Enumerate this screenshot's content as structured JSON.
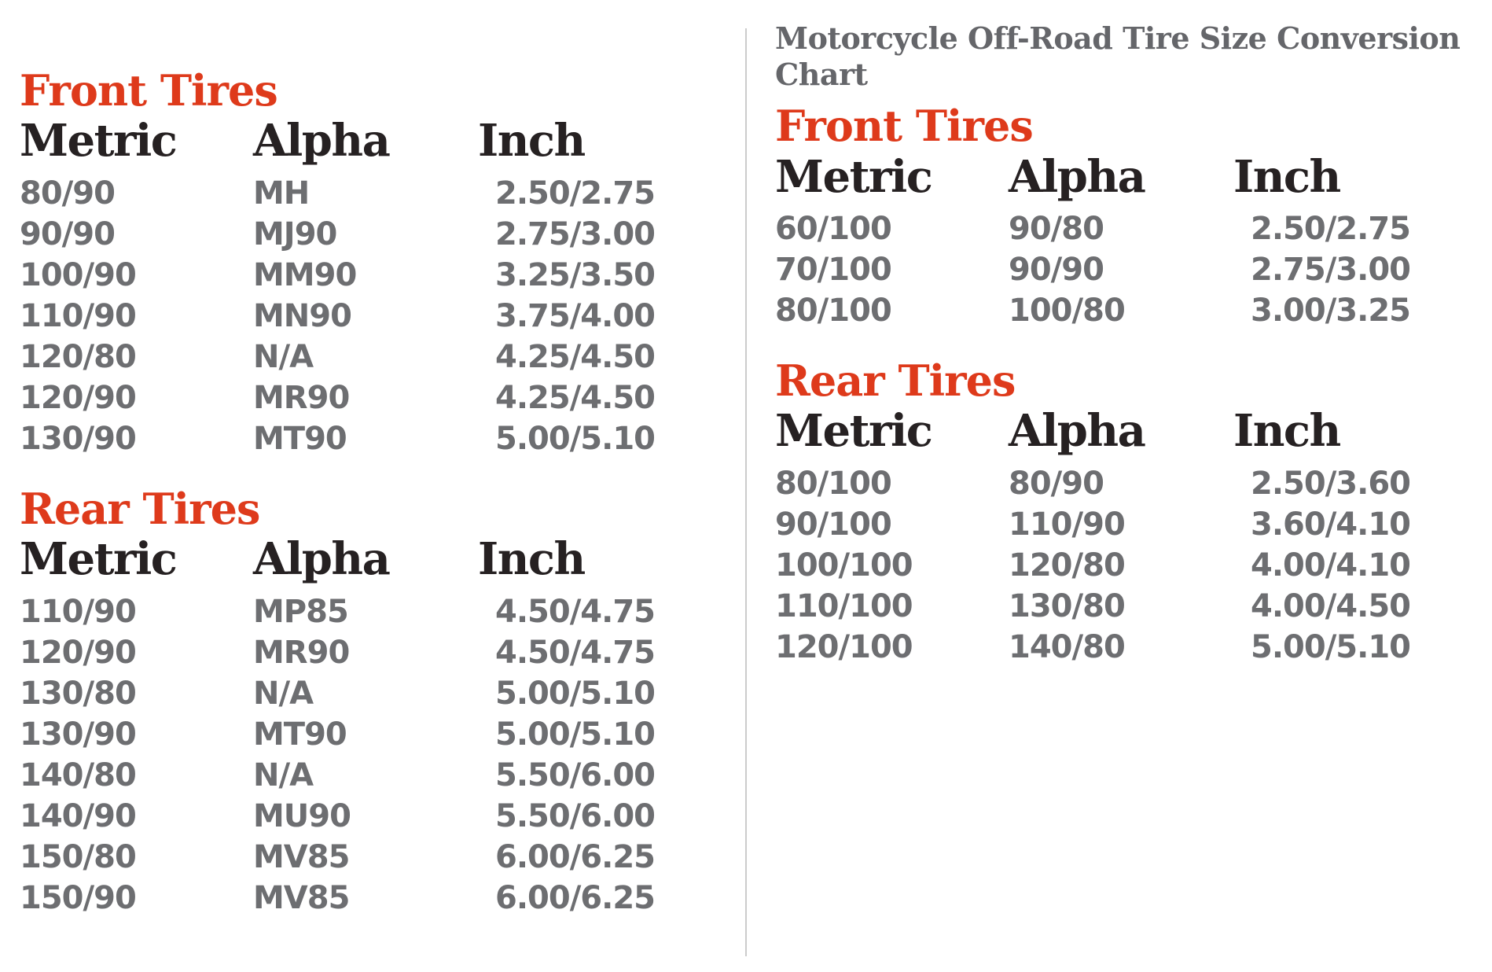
{
  "page": {
    "title": "Motorcycle Off-Road Tire Size Conversion Chart",
    "background": "#ffffff"
  },
  "colors": {
    "section_heading_red": "#de3a1b",
    "column_header_dark": "#262122",
    "data_text_gray": "#6d6e71",
    "title_gray": "#65666a",
    "divider_gray": "#cbcbcb"
  },
  "left_panel": {
    "sections": [
      {
        "heading": "Front Tires",
        "columns": [
          "Metric",
          "Alpha",
          "Inch"
        ],
        "rows": [
          [
            "80/90",
            "MH",
            "2.50/2.75"
          ],
          [
            "90/90",
            "MJ90",
            "2.75/3.00"
          ],
          [
            "100/90",
            "MM90",
            "3.25/3.50"
          ],
          [
            "110/90",
            "MN90",
            "3.75/4.00"
          ],
          [
            "120/80",
            "N/A",
            "4.25/4.50"
          ],
          [
            "120/90",
            "MR90",
            "4.25/4.50"
          ],
          [
            "130/90",
            "MT90",
            "5.00/5.10"
          ]
        ]
      },
      {
        "heading": "Rear Tires",
        "columns": [
          "Metric",
          "Alpha",
          "Inch"
        ],
        "rows": [
          [
            "110/90",
            "MP85",
            "4.50/4.75"
          ],
          [
            "120/90",
            "MR90",
            "4.50/4.75"
          ],
          [
            "130/80",
            "N/A",
            "5.00/5.10"
          ],
          [
            "130/90",
            "MT90",
            "5.00/5.10"
          ],
          [
            "140/80",
            "N/A",
            "5.50/6.00"
          ],
          [
            "140/90",
            "MU90",
            "5.50/6.00"
          ],
          [
            "150/80",
            "MV85",
            "6.00/6.25"
          ],
          [
            "150/90",
            "MV85",
            "6.00/6.25"
          ]
        ]
      }
    ]
  },
  "right_panel": {
    "title": "Motorcycle Off-Road Tire Size Conversion Chart",
    "sections": [
      {
        "heading": "Front Tires",
        "columns": [
          "Metric",
          "Alpha",
          "Inch"
        ],
        "rows": [
          [
            "60/100",
            "90/80",
            "2.50/2.75"
          ],
          [
            "70/100",
            "90/90",
            "2.75/3.00"
          ],
          [
            "80/100",
            "100/80",
            "3.00/3.25"
          ]
        ]
      },
      {
        "heading": "Rear Tires",
        "columns": [
          "Metric",
          "Alpha",
          "Inch"
        ],
        "rows": [
          [
            "80/100",
            "80/90",
            "2.50/3.60"
          ],
          [
            "90/100",
            "110/90",
            "3.60/4.10"
          ],
          [
            "100/100",
            "120/80",
            "4.00/4.10"
          ],
          [
            "110/100",
            "130/80",
            "4.00/4.50"
          ],
          [
            "120/100",
            "140/80",
            "5.00/5.10"
          ]
        ]
      }
    ]
  },
  "chart_data": [
    {
      "type": "table",
      "panel": "left",
      "title": "Front Tires",
      "columns": [
        "Metric",
        "Alpha",
        "Inch"
      ],
      "rows": [
        [
          "80/90",
          "MH",
          "2.50/2.75"
        ],
        [
          "90/90",
          "MJ90",
          "2.75/3.00"
        ],
        [
          "100/90",
          "MM90",
          "3.25/3.50"
        ],
        [
          "110/90",
          "MN90",
          "3.75/4.00"
        ],
        [
          "120/80",
          "N/A",
          "4.25/4.50"
        ],
        [
          "120/90",
          "MR90",
          "4.25/4.50"
        ],
        [
          "130/90",
          "MT90",
          "5.00/5.10"
        ]
      ]
    },
    {
      "type": "table",
      "panel": "left",
      "title": "Rear Tires",
      "columns": [
        "Metric",
        "Alpha",
        "Inch"
      ],
      "rows": [
        [
          "110/90",
          "MP85",
          "4.50/4.75"
        ],
        [
          "120/90",
          "MR90",
          "4.50/4.75"
        ],
        [
          "130/80",
          "N/A",
          "5.00/5.10"
        ],
        [
          "130/90",
          "MT90",
          "5.00/5.10"
        ],
        [
          "140/80",
          "N/A",
          "5.50/6.00"
        ],
        [
          "140/90",
          "MU90",
          "5.50/6.00"
        ],
        [
          "150/80",
          "MV85",
          "6.00/6.25"
        ],
        [
          "150/90",
          "MV85",
          "6.00/6.25"
        ]
      ]
    },
    {
      "type": "table",
      "panel": "right",
      "title": "Front Tires",
      "subtitle": "Motorcycle Off-Road Tire Size Conversion Chart",
      "columns": [
        "Metric",
        "Alpha",
        "Inch"
      ],
      "rows": [
        [
          "60/100",
          "90/80",
          "2.50/2.75"
        ],
        [
          "70/100",
          "90/90",
          "2.75/3.00"
        ],
        [
          "80/100",
          "100/80",
          "3.00/3.25"
        ]
      ]
    },
    {
      "type": "table",
      "panel": "right",
      "title": "Rear Tires",
      "columns": [
        "Metric",
        "Alpha",
        "Inch"
      ],
      "rows": [
        [
          "80/100",
          "80/90",
          "2.50/3.60"
        ],
        [
          "90/100",
          "110/90",
          "3.60/4.10"
        ],
        [
          "100/100",
          "120/80",
          "4.00/4.10"
        ],
        [
          "110/100",
          "130/80",
          "4.00/4.50"
        ],
        [
          "120/100",
          "140/80",
          "5.00/5.10"
        ]
      ]
    }
  ]
}
